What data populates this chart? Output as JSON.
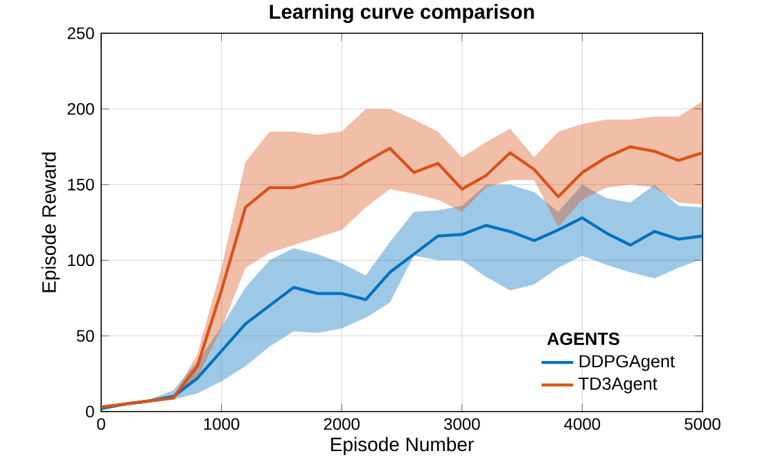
{
  "chart_data": {
    "type": "line",
    "title": "Learning curve comparison",
    "xlabel": "Episode Number",
    "ylabel": "Episode Reward",
    "legend_title": "AGENTS",
    "x": [
      0,
      200,
      400,
      600,
      800,
      1000,
      1200,
      1400,
      1600,
      1800,
      2000,
      2200,
      2400,
      2600,
      2800,
      3000,
      3200,
      3400,
      3600,
      3800,
      4000,
      4200,
      4400,
      4600,
      4800,
      5000
    ],
    "series": [
      {
        "name": "DDPGAgent",
        "color": "#0072bd",
        "values": [
          2,
          5,
          7,
          10,
          22,
          40,
          58,
          70,
          82,
          78,
          78,
          74,
          92,
          104,
          116,
          117,
          123,
          119,
          113,
          120,
          128,
          118,
          110,
          119,
          114,
          116
        ],
        "upper": [
          3,
          6,
          8,
          14,
          33,
          56,
          82,
          100,
          108,
          104,
          98,
          90,
          112,
          132,
          133,
          136,
          150,
          150,
          145,
          132,
          150,
          141,
          138,
          150,
          136,
          135
        ],
        "lower": [
          1,
          4,
          6,
          8,
          12,
          20,
          30,
          43,
          53,
          52,
          55,
          62,
          72,
          103,
          100,
          100,
          89,
          80,
          84,
          95,
          103,
          97,
          92,
          88,
          95,
          101
        ]
      },
      {
        "name": "TD3Agent",
        "color": "#d95319",
        "values": [
          3,
          5,
          7,
          9,
          30,
          80,
          135,
          148,
          148,
          152,
          155,
          165,
          174,
          158,
          164,
          147,
          156,
          171,
          160,
          142,
          158,
          168,
          175,
          172,
          166,
          171
        ],
        "upper": [
          4,
          6,
          8,
          10,
          38,
          95,
          165,
          185,
          185,
          183,
          185,
          200,
          200,
          193,
          185,
          168,
          178,
          187,
          168,
          185,
          190,
          193,
          193,
          195,
          195,
          205
        ],
        "lower": [
          2,
          4,
          6,
          8,
          22,
          55,
          95,
          105,
          110,
          115,
          120,
          135,
          147,
          144,
          140,
          132,
          148,
          153,
          153,
          122,
          140,
          148,
          150,
          148,
          138,
          137
        ]
      }
    ],
    "xlim": [
      0,
      5000
    ],
    "ylim": [
      0,
      250
    ],
    "xticks": [
      0,
      1000,
      2000,
      3000,
      4000,
      5000
    ],
    "yticks": [
      0,
      50,
      100,
      150,
      200,
      250
    ],
    "grid": true,
    "legend": "bottom right",
    "marker": "none",
    "line_style": "solid"
  }
}
